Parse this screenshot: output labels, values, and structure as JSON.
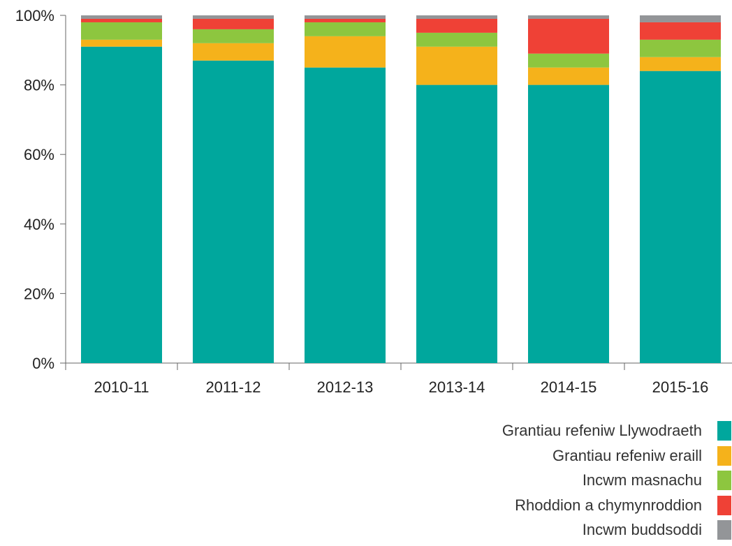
{
  "chart_data": {
    "type": "bar",
    "stacked": true,
    "categories": [
      "2010-11",
      "2011-12",
      "2012-13",
      "2013-14",
      "2014-15",
      "2015-16"
    ],
    "series": [
      {
        "name": "Grantiau refeniw Llywodraeth",
        "color": "#00a79d",
        "values": [
          91,
          87,
          85,
          80,
          80,
          84
        ]
      },
      {
        "name": "Grantiau refeniw eraill",
        "color": "#f5b21b",
        "values": [
          2,
          5,
          9,
          11,
          5,
          4
        ]
      },
      {
        "name": "Incwm masnachu",
        "color": "#8dc63f",
        "values": [
          5,
          4,
          4,
          4,
          4,
          5
        ]
      },
      {
        "name": "Rhoddion a chymynroddion",
        "color": "#ef4136",
        "values": [
          1,
          3,
          1,
          4,
          10,
          5
        ]
      },
      {
        "name": "Incwm buddsoddi",
        "color": "#939598",
        "values": [
          1,
          1,
          1,
          1,
          1,
          2
        ]
      }
    ],
    "yticks": [
      "0%",
      "20%",
      "40%",
      "60%",
      "80%",
      "100%"
    ],
    "ylim": [
      0,
      100
    ],
    "legend_position": "bottom-right",
    "grid": false
  }
}
